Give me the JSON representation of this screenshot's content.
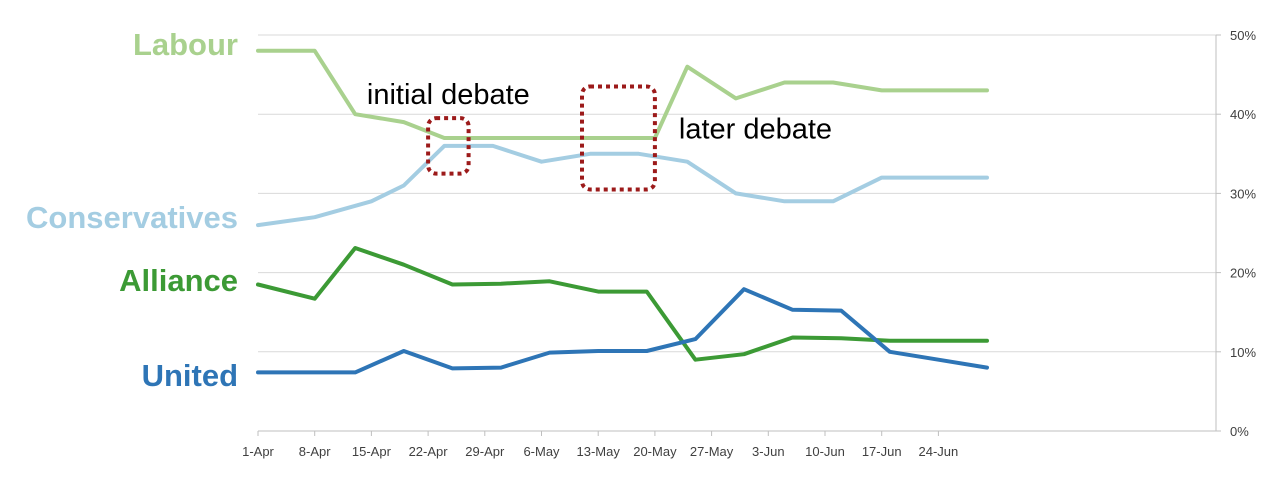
{
  "chart_data": {
    "type": "line",
    "x": [
      "1-Apr",
      "8-Apr",
      "15-Apr",
      "22-Apr",
      "29-Apr",
      "6-May",
      "13-May",
      "20-May",
      "27-May",
      "3-Jun",
      "10-Jun",
      "17-Jun",
      "24-Jun"
    ],
    "x_tick_labels": [
      "1-Apr",
      "8-Apr",
      "15-Apr",
      "22-Apr",
      "29-Apr",
      "6-May",
      "13-May",
      "20-May",
      "27-May",
      "3-Jun",
      "10-Jun",
      "17-Jun",
      "24-Jun"
    ],
    "y_tick_labels": [
      "0%",
      "10%",
      "20%",
      "30%",
      "40%",
      "50%"
    ],
    "ylim": [
      0,
      50
    ],
    "y_axis_side": "right",
    "grid": true,
    "series": [
      {
        "name": "Labour",
        "color": "#a9d18e",
        "points": [
          [
            "1-Apr",
            48
          ],
          [
            "8-Apr",
            48
          ],
          [
            "13-Apr",
            40
          ],
          [
            "19-Apr",
            39
          ],
          [
            "24-Apr",
            37
          ],
          [
            "1-May",
            37
          ],
          [
            "8-May",
            37
          ],
          [
            "15-May",
            37
          ],
          [
            "20-May",
            37
          ],
          [
            "24-May",
            46
          ],
          [
            "30-May",
            42
          ],
          [
            "5-Jun",
            44
          ],
          [
            "11-Jun",
            44
          ],
          [
            "17-Jun",
            43
          ],
          [
            "24-Jun",
            43
          ],
          [
            "30-Jun",
            43
          ]
        ]
      },
      {
        "name": "Conservatives",
        "color": "#a4cde2",
        "points": [
          [
            "1-Apr",
            26
          ],
          [
            "8-Apr",
            27
          ],
          [
            "15-Apr",
            29
          ],
          [
            "19-Apr",
            31
          ],
          [
            "24-Apr",
            36
          ],
          [
            "30-Apr",
            36
          ],
          [
            "6-May",
            34
          ],
          [
            "12-May",
            35
          ],
          [
            "18-May",
            35
          ],
          [
            "24-May",
            34
          ],
          [
            "30-May",
            30
          ],
          [
            "5-Jun",
            29
          ],
          [
            "11-Jun",
            29
          ],
          [
            "17-Jun",
            32
          ],
          [
            "24-Jun",
            32
          ],
          [
            "30-Jun",
            32
          ]
        ]
      },
      {
        "name": "Alliance",
        "color": "#3c9a35",
        "points": [
          [
            "1-Apr",
            18.5
          ],
          [
            "8-Apr",
            16.7
          ],
          [
            "13-Apr",
            23.1
          ],
          [
            "19-Apr",
            21
          ],
          [
            "25-Apr",
            18.5
          ],
          [
            "1-May",
            18.6
          ],
          [
            "7-May",
            18.9
          ],
          [
            "13-May",
            17.6
          ],
          [
            "19-May",
            17.6
          ],
          [
            "25-May",
            9
          ],
          [
            "31-May",
            9.7
          ],
          [
            "6-Jun",
            11.8
          ],
          [
            "12-Jun",
            11.7
          ],
          [
            "18-Jun",
            11.4
          ],
          [
            "24-Jun",
            11.4
          ],
          [
            "30-Jun",
            11.4
          ]
        ]
      },
      {
        "name": "United",
        "color": "#2e75b6",
        "points": [
          [
            "1-Apr",
            7.4
          ],
          [
            "8-Apr",
            7.4
          ],
          [
            "13-Apr",
            7.4
          ],
          [
            "19-Apr",
            10.1
          ],
          [
            "25-Apr",
            7.9
          ],
          [
            "1-May",
            8
          ],
          [
            "7-May",
            9.9
          ],
          [
            "13-May",
            10.1
          ],
          [
            "19-May",
            10.1
          ],
          [
            "25-May",
            11.6
          ],
          [
            "31-May",
            17.9
          ],
          [
            "6-Jun",
            15.3
          ],
          [
            "12-Jun",
            15.2
          ],
          [
            "18-Jun",
            10
          ],
          [
            "24-Jun",
            9
          ],
          [
            "30-Jun",
            8
          ]
        ]
      }
    ],
    "series_labels": [
      "Labour",
      "Conservatives",
      "Alliance",
      "United"
    ],
    "annotations": [
      {
        "text": "initial debate",
        "from": "22-Apr",
        "to": "27-Apr",
        "y_range": [
          32.5,
          39.5
        ],
        "box_color": "#9c1a1a"
      },
      {
        "text": "later debate",
        "from": "11-May",
        "to": "20-May",
        "y_range": [
          30.5,
          43.5
        ],
        "box_color": "#9c1a1a"
      }
    ]
  }
}
